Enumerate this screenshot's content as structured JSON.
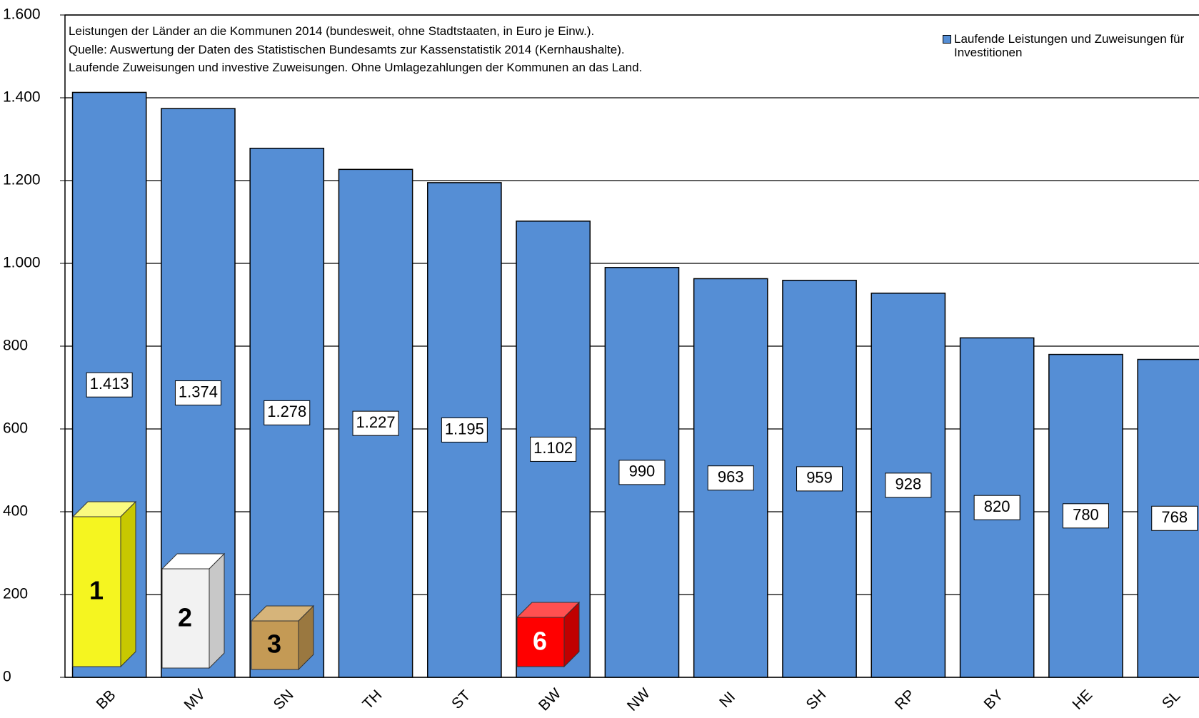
{
  "chart_data": {
    "type": "bar",
    "title": [
      "Leistungen der Länder an die Kommunen  2014 (bundesweit, ohne Stadtstaaten, in  Euro je Einw.).",
      "Quelle: Auswertung der Daten des Statistischen Bundesamts zur Kassenstatistik 2014 (Kernhaushalte).",
      "Laufende  Zuweisungen und investive Zuweisungen. Ohne Umlagezahlungen der Kommunen an das Land."
    ],
    "categories": [
      "BB",
      "MV",
      "SN",
      "TH",
      "ST",
      "BW",
      "NW",
      "NI",
      "SH",
      "RP",
      "BY",
      "HE",
      "SL"
    ],
    "series": [
      {
        "name": "Laufende Leistungen und Zuweisungen für Investitionen",
        "color": "#558ed5",
        "values": [
          1413,
          1374,
          1278,
          1227,
          1195,
          1102,
          990,
          963,
          959,
          928,
          820,
          780,
          768
        ],
        "value_labels": [
          "1.413",
          "1.374",
          "1.278",
          "1.227",
          "1.195",
          "1.102",
          "990",
          "963",
          "959",
          "928",
          "820",
          "780",
          "768"
        ]
      }
    ],
    "ylim": [
      0,
      1600
    ],
    "yticks": [
      0,
      200,
      400,
      600,
      800,
      {
        "value": 1000,
        "label": "1.000"
      },
      {
        "value": 1200,
        "label": "1.200"
      },
      {
        "value": 1400,
        "label": "1.400"
      },
      {
        "value": 1600,
        "label": "1.600"
      }
    ],
    "grid": true,
    "legend": "top-right",
    "annotations": [
      "1",
      "2",
      "3",
      "6"
    ]
  }
}
